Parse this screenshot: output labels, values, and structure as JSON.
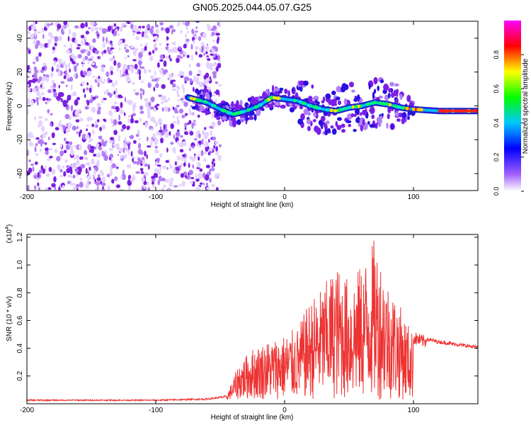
{
  "title": "GN05.2025.044.05.07.G25",
  "chart_data": [
    {
      "type": "heatmap",
      "xlabel": "Height of straight line (km)",
      "ylabel": "Frequency (Hz)",
      "xlim": [
        -200,
        150
      ],
      "ylim": [
        -50,
        50
      ],
      "xticks": [
        -200,
        -100,
        0,
        100
      ],
      "yticks": [
        -40,
        -20,
        0,
        20,
        40
      ],
      "colorbar": {
        "label": "Normalized spectral amplitude",
        "range": [
          0,
          1
        ],
        "ticks": [
          "0.0",
          "0.2",
          "0.4",
          "0.6",
          "0.8"
        ],
        "colors": [
          "#ffffff",
          "#8a2be2",
          "#0000ff",
          "#00ffff",
          "#00ff00",
          "#ffff00",
          "#ff0000",
          "#ff00ff"
        ]
      },
      "ridge_x": [
        -75,
        -60,
        -50,
        -40,
        -30,
        -20,
        -10,
        0,
        10,
        20,
        30,
        40,
        50,
        60,
        70,
        80,
        90,
        100,
        120,
        150
      ],
      "ridge_y": [
        5,
        2,
        -2,
        -5,
        -3,
        0,
        5,
        4,
        3,
        0,
        -2,
        -3,
        -1,
        0,
        2,
        1,
        -1,
        -2,
        -3,
        -3
      ]
    },
    {
      "type": "line",
      "xlabel": "Height of straight line (km)",
      "ylabel": "SNR (10 * v/v)",
      "scale_note": "(x10",
      "scale_exp": "4",
      "xlim": [
        -200,
        150
      ],
      "ylim": [
        0,
        1.22
      ],
      "xticks": [
        -200,
        -100,
        0,
        100
      ],
      "yticks": [
        "0.2",
        "0.4",
        "0.6",
        "0.8",
        "1.0",
        "1.2"
      ],
      "color": "#ee3333",
      "envelope_x": [
        -200,
        -150,
        -100,
        -60,
        -45,
        -35,
        -25,
        -15,
        0,
        10,
        20,
        30,
        40,
        50,
        60,
        70,
        80,
        90,
        100,
        105,
        120,
        150
      ],
      "envelope_y": [
        0.03,
        0.03,
        0.03,
        0.04,
        0.06,
        0.3,
        0.4,
        0.45,
        0.5,
        0.55,
        0.75,
        0.85,
        1.0,
        0.9,
        1.0,
        1.2,
        0.9,
        0.7,
        0.5,
        0.48,
        0.45,
        0.41
      ]
    }
  ]
}
